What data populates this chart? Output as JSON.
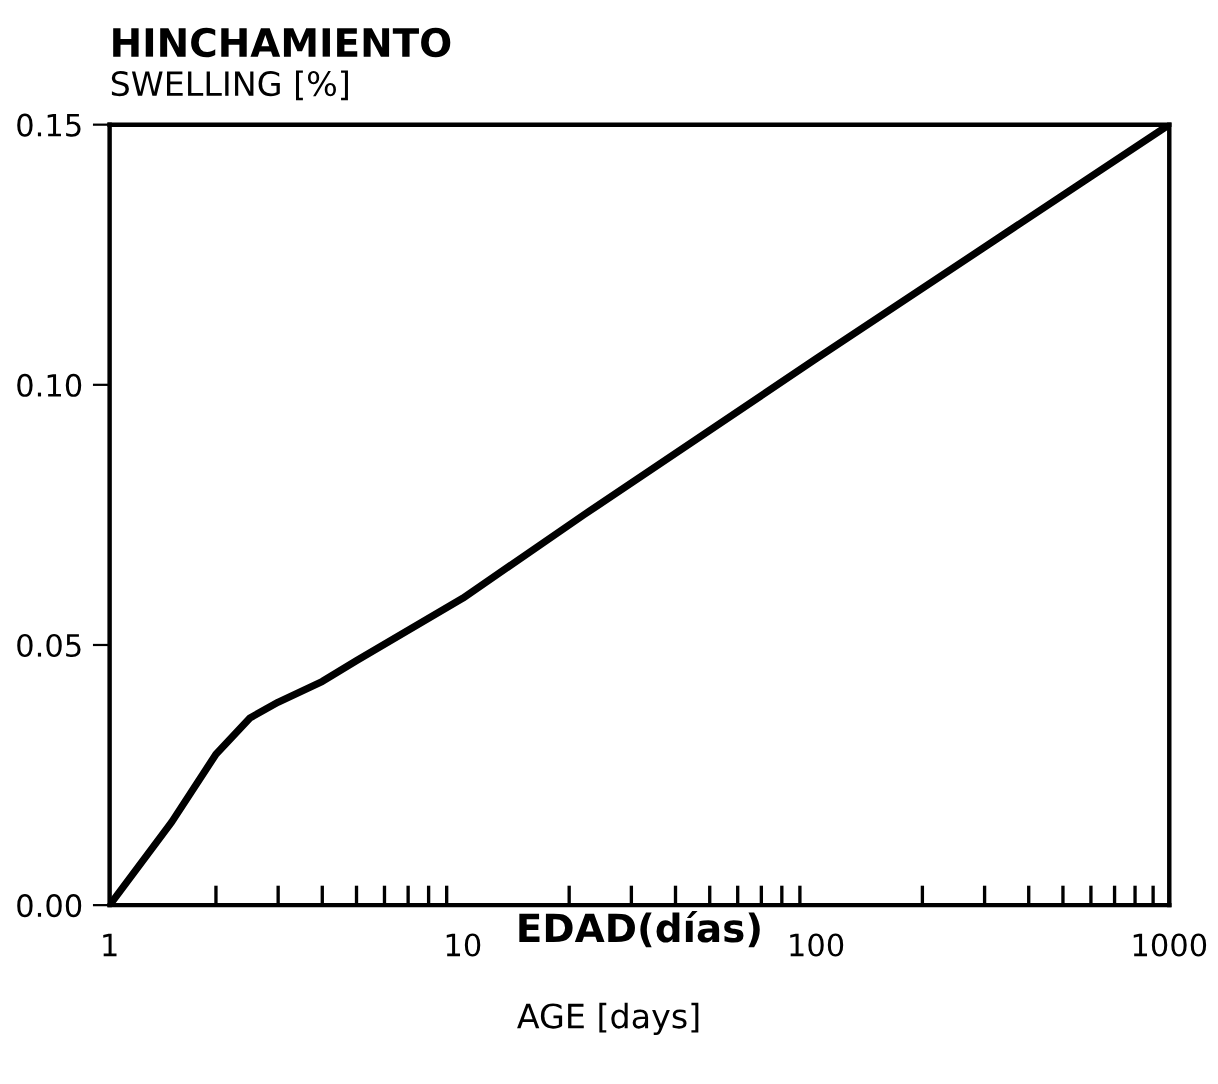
{
  "chart_data": {
    "type": "line",
    "title": "HINCHAMIENTO",
    "ylabel": "SWELLING [%]",
    "xlabel": "EDAD(días)",
    "annotations": [
      "AGE [days]"
    ],
    "log": "x",
    "x": [
      1,
      1.5,
      2,
      2.5,
      3,
      4,
      5,
      10,
      22,
      100,
      1000
    ],
    "series": [
      {
        "color": "#000000",
        "values": [
          0,
          0.016,
          0.029,
          0.036,
          0.039,
          0.043,
          0.047,
          0.059,
          0.075,
          0.105,
          0.15
        ]
      }
    ],
    "xlim": [
      1,
      1000
    ],
    "xticks": [
      1,
      10,
      100,
      1000
    ],
    "ylim": [
      0,
      0.15
    ],
    "yticks": [
      {
        "value": 0,
        "label": "0.00"
      },
      {
        "value": 0.05,
        "label": "0.05"
      },
      {
        "value": 0.1,
        "label": "0.10"
      },
      {
        "value": 0.15,
        "label": "0.15"
      }
    ],
    "grid": false,
    "legend": false,
    "marker": "none",
    "line_style": "solid"
  }
}
